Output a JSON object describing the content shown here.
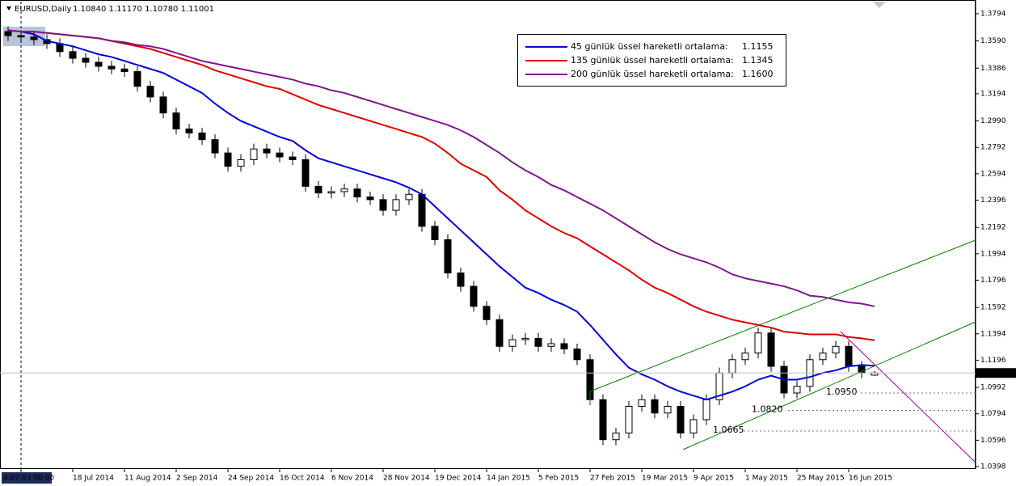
{
  "chart_data": {
    "type": "candlestick",
    "symbol": "EURUSD,Daily",
    "quote": "1.10840 1.11170 1.10780 1.11001",
    "up_color": "#ffffff",
    "down_color": "#000000",
    "open": [
      1.366,
      1.363,
      1.362,
      1.36,
      1.357,
      1.351,
      1.346,
      1.343,
      1.34,
      1.338,
      1.336,
      1.325,
      1.317,
      1.305,
      1.293,
      1.29,
      1.285,
      1.275,
      1.265,
      1.27,
      1.278,
      1.275,
      1.272,
      1.27,
      1.25,
      1.245,
      1.246,
      1.248,
      1.242,
      1.24,
      1.232,
      1.24,
      1.244,
      1.22,
      1.21,
      1.185,
      1.175,
      1.16,
      1.15,
      1.13,
      1.135,
      1.136,
      1.13,
      1.132,
      1.128,
      1.12,
      1.09,
      1.06,
      1.065,
      1.085,
      1.09,
      1.08,
      1.085,
      1.065,
      1.075,
      1.09,
      1.11,
      1.12,
      1.125,
      1.14,
      1.115,
      1.095,
      1.1,
      1.12,
      1.125,
      1.13,
      1.115,
      1.1084
    ],
    "high": [
      1.37,
      1.367,
      1.366,
      1.364,
      1.361,
      1.355,
      1.35,
      1.347,
      1.344,
      1.342,
      1.34,
      1.329,
      1.321,
      1.309,
      1.297,
      1.294,
      1.289,
      1.279,
      1.274,
      1.282,
      1.282,
      1.279,
      1.276,
      1.274,
      1.254,
      1.25,
      1.252,
      1.252,
      1.246,
      1.244,
      1.244,
      1.248,
      1.248,
      1.224,
      1.214,
      1.189,
      1.179,
      1.164,
      1.154,
      1.139,
      1.14,
      1.14,
      1.136,
      1.136,
      1.132,
      1.124,
      1.094,
      1.069,
      1.089,
      1.094,
      1.094,
      1.089,
      1.089,
      1.079,
      1.094,
      1.114,
      1.124,
      1.129,
      1.144,
      1.144,
      1.119,
      1.104,
      1.124,
      1.129,
      1.134,
      1.134,
      1.119,
      1.1117
    ],
    "low": [
      1.359,
      1.358,
      1.356,
      1.353,
      1.347,
      1.342,
      1.339,
      1.336,
      1.334,
      1.332,
      1.321,
      1.313,
      1.301,
      1.289,
      1.286,
      1.281,
      1.271,
      1.261,
      1.261,
      1.266,
      1.271,
      1.268,
      1.266,
      1.246,
      1.241,
      1.241,
      1.242,
      1.238,
      1.236,
      1.228,
      1.228,
      1.236,
      1.216,
      1.206,
      1.181,
      1.171,
      1.156,
      1.146,
      1.126,
      1.126,
      1.131,
      1.126,
      1.126,
      1.124,
      1.116,
      1.086,
      1.056,
      1.056,
      1.061,
      1.081,
      1.076,
      1.076,
      1.061,
      1.061,
      1.071,
      1.086,
      1.106,
      1.116,
      1.121,
      1.111,
      1.091,
      1.091,
      1.096,
      1.116,
      1.121,
      1.111,
      1.106,
      1.1078
    ],
    "close": [
      1.363,
      1.362,
      1.36,
      1.357,
      1.351,
      1.346,
      1.343,
      1.34,
      1.338,
      1.336,
      1.325,
      1.317,
      1.305,
      1.293,
      1.29,
      1.285,
      1.275,
      1.265,
      1.27,
      1.278,
      1.275,
      1.272,
      1.27,
      1.25,
      1.245,
      1.246,
      1.248,
      1.242,
      1.24,
      1.232,
      1.24,
      1.244,
      1.22,
      1.21,
      1.185,
      1.175,
      1.16,
      1.15,
      1.13,
      1.135,
      1.136,
      1.13,
      1.132,
      1.128,
      1.12,
      1.09,
      1.06,
      1.065,
      1.085,
      1.09,
      1.08,
      1.085,
      1.065,
      1.075,
      1.09,
      1.11,
      1.12,
      1.125,
      1.14,
      1.115,
      1.095,
      1.1,
      1.12,
      1.125,
      1.13,
      1.115,
      1.11,
      1.11
    ],
    "x_tick_labels": [
      "4.07.03 00:00",
      "18 Jul 2014",
      "11 Aug 2014",
      "2 Sep 2014",
      "24 Sep 2014",
      "16 Oct 2014",
      "6 Nov 2014",
      "28 Nov 2014",
      "19 Dec 2014",
      "14 Jan 2015",
      "5 Feb 2015",
      "27 Feb 2015",
      "19 Mar 2015",
      "9 Apr 2015",
      "1 May 2015",
      "25 May 2015",
      "16 Jun 2015"
    ],
    "series": [
      {
        "name": "45 günlük üssel hareketli ortalama:",
        "legend_value": "1.1155",
        "color": "#0000dd",
        "values": [
          1.367,
          1.366,
          1.364,
          1.359,
          1.357,
          1.355,
          1.352,
          1.349,
          1.347,
          1.344,
          1.341,
          1.338,
          1.335,
          1.33,
          1.325,
          1.32,
          1.312,
          1.305,
          1.299,
          1.295,
          1.291,
          1.287,
          1.284,
          1.277,
          1.271,
          1.268,
          1.265,
          1.262,
          1.259,
          1.256,
          1.253,
          1.249,
          1.244,
          1.235,
          1.226,
          1.217,
          1.208,
          1.199,
          1.19,
          1.182,
          1.174,
          1.17,
          1.165,
          1.161,
          1.156,
          1.146,
          1.135,
          1.124,
          1.114,
          1.109,
          1.105,
          1.1,
          1.096,
          1.093,
          1.09,
          1.093,
          1.096,
          1.1,
          1.105,
          1.108,
          1.105,
          1.105,
          1.107,
          1.11,
          1.112,
          1.115,
          1.116,
          1.1155
        ]
      },
      {
        "name": "135 günlük üssel hareketli ortalama:",
        "legend_value": "1.1345",
        "color": "#e00000",
        "values": [
          1.367,
          1.366,
          1.366,
          1.365,
          1.364,
          1.363,
          1.362,
          1.361,
          1.359,
          1.357,
          1.355,
          1.353,
          1.35,
          1.347,
          1.344,
          1.341,
          1.337,
          1.334,
          1.331,
          1.328,
          1.325,
          1.323,
          1.319,
          1.315,
          1.311,
          1.308,
          1.305,
          1.302,
          1.299,
          1.296,
          1.293,
          1.29,
          1.287,
          1.282,
          1.275,
          1.267,
          1.262,
          1.257,
          1.247,
          1.24,
          1.232,
          1.226,
          1.22,
          1.215,
          1.211,
          1.205,
          1.199,
          1.193,
          1.187,
          1.18,
          1.174,
          1.17,
          1.165,
          1.16,
          1.156,
          1.153,
          1.15,
          1.148,
          1.146,
          1.144,
          1.141,
          1.14,
          1.139,
          1.139,
          1.139,
          1.137,
          1.136,
          1.1345
        ]
      },
      {
        "name": "200 günlük üssel hareketli ortalama:",
        "legend_value": "1.1600",
        "color": "#7a1a8a",
        "values": [
          1.367,
          1.366,
          1.366,
          1.365,
          1.364,
          1.363,
          1.362,
          1.361,
          1.359,
          1.358,
          1.356,
          1.355,
          1.353,
          1.35,
          1.347,
          1.344,
          1.342,
          1.34,
          1.338,
          1.336,
          1.334,
          1.332,
          1.33,
          1.327,
          1.325,
          1.322,
          1.32,
          1.317,
          1.314,
          1.311,
          1.308,
          1.305,
          1.302,
          1.299,
          1.296,
          1.292,
          1.287,
          1.281,
          1.275,
          1.268,
          1.262,
          1.257,
          1.251,
          1.247,
          1.242,
          1.237,
          1.232,
          1.226,
          1.22,
          1.214,
          1.208,
          1.203,
          1.199,
          1.196,
          1.193,
          1.189,
          1.184,
          1.181,
          1.179,
          1.177,
          1.175,
          1.172,
          1.168,
          1.167,
          1.165,
          1.163,
          1.162,
          1.16
        ]
      }
    ],
    "ylim": [
      1.038,
      1.3897
    ],
    "yticks": [
      1.3794,
      {
        "value": 1.359,
        "label": "1.3590"
      },
      1.3386,
      1.3194,
      {
        "value": 1.299,
        "label": "1.2990"
      },
      1.2792,
      1.2594,
      1.2396,
      1.2192,
      1.1994,
      1.1796,
      1.1592,
      1.1394,
      1.1196,
      1.0992,
      1.0794,
      1.0596,
      1.0398
    ],
    "current_price": {
      "value": 1.11001,
      "label": "1.11001"
    },
    "levels": [
      {
        "value": 1.095,
        "label": "1.0950"
      },
      {
        "value": 1.082,
        "label": "1.0820"
      },
      {
        "value": 1.0665,
        "label": "1.0665"
      }
    ]
  }
}
